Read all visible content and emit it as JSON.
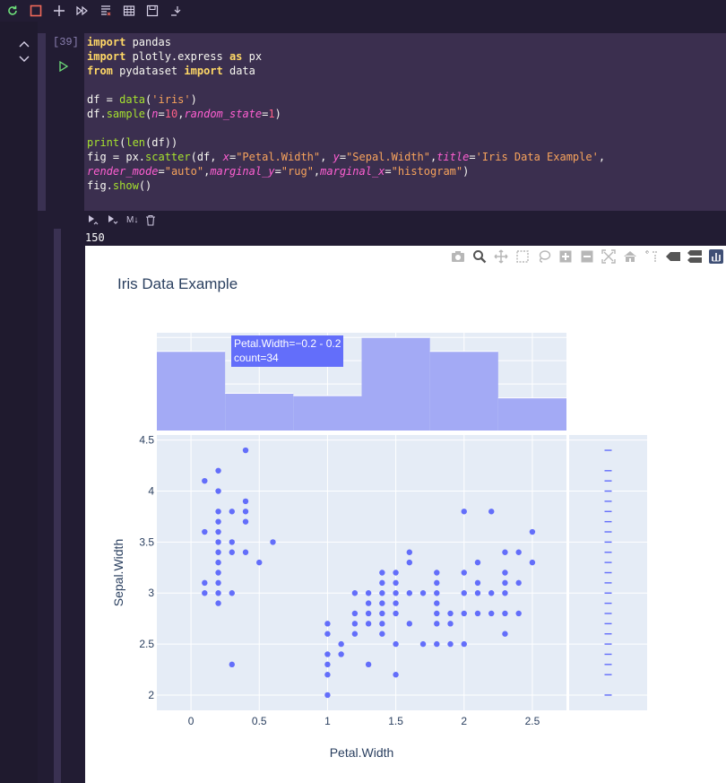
{
  "toolbar": {
    "buttons": [
      "restart-icon",
      "stop-icon",
      "add-cell-icon",
      "run-all-icon",
      "clear-outputs-icon",
      "variables-icon",
      "save-icon",
      "export-icon"
    ]
  },
  "cell": {
    "execution_count": "[39]",
    "lines": [
      [
        {
          "t": "import",
          "c": "kw"
        },
        {
          "t": " pandas",
          "c": ""
        }
      ],
      [
        {
          "t": "import",
          "c": "kw"
        },
        {
          "t": " plotly.express ",
          "c": ""
        },
        {
          "t": "as",
          "c": "kw"
        },
        {
          "t": " px",
          "c": ""
        }
      ],
      [
        {
          "t": "from",
          "c": "kw"
        },
        {
          "t": " pydataset ",
          "c": ""
        },
        {
          "t": "import",
          "c": "kw"
        },
        {
          "t": " data",
          "c": ""
        }
      ],
      [
        {
          "t": "",
          "c": ""
        }
      ],
      [
        {
          "t": "df = ",
          "c": ""
        },
        {
          "t": "data",
          "c": "fn"
        },
        {
          "t": "(",
          "c": ""
        },
        {
          "t": "'iris'",
          "c": "str"
        },
        {
          "t": ")",
          "c": ""
        }
      ],
      [
        {
          "t": "df.",
          "c": ""
        },
        {
          "t": "sample",
          "c": "fn"
        },
        {
          "t": "(",
          "c": ""
        },
        {
          "t": "n",
          "c": "par"
        },
        {
          "t": "=",
          "c": ""
        },
        {
          "t": "10",
          "c": "num"
        },
        {
          "t": ",",
          "c": ""
        },
        {
          "t": "random_state",
          "c": "par"
        },
        {
          "t": "=",
          "c": ""
        },
        {
          "t": "1",
          "c": "num"
        },
        {
          "t": ")",
          "c": ""
        }
      ],
      [
        {
          "t": "",
          "c": ""
        }
      ],
      [
        {
          "t": "print",
          "c": "fn"
        },
        {
          "t": "(",
          "c": ""
        },
        {
          "t": "len",
          "c": "fn"
        },
        {
          "t": "(df))",
          "c": ""
        }
      ],
      [
        {
          "t": "fig = px.",
          "c": ""
        },
        {
          "t": "scatter",
          "c": "fn"
        },
        {
          "t": "(df, ",
          "c": ""
        },
        {
          "t": "x",
          "c": "par"
        },
        {
          "t": "=",
          "c": ""
        },
        {
          "t": "\"Petal.Width\"",
          "c": "str"
        },
        {
          "t": ", ",
          "c": ""
        },
        {
          "t": "y",
          "c": "par"
        },
        {
          "t": "=",
          "c": ""
        },
        {
          "t": "\"Sepal.Width\"",
          "c": "str"
        },
        {
          "t": ",",
          "c": ""
        },
        {
          "t": "title",
          "c": "par"
        },
        {
          "t": "=",
          "c": ""
        },
        {
          "t": "'Iris Data Example'",
          "c": "str"
        },
        {
          "t": ",",
          "c": ""
        }
      ],
      [
        {
          "t": "render_mode",
          "c": "par"
        },
        {
          "t": "=",
          "c": ""
        },
        {
          "t": "\"auto\"",
          "c": "str"
        },
        {
          "t": ",",
          "c": ""
        },
        {
          "t": "marginal_y",
          "c": "par"
        },
        {
          "t": "=",
          "c": ""
        },
        {
          "t": "\"rug\"",
          "c": "str"
        },
        {
          "t": ",",
          "c": ""
        },
        {
          "t": "marginal_x",
          "c": "par"
        },
        {
          "t": "=",
          "c": ""
        },
        {
          "t": "\"histogram\"",
          "c": "str"
        },
        {
          "t": ")",
          "c": ""
        }
      ],
      [
        {
          "t": "fig.",
          "c": ""
        },
        {
          "t": "show",
          "c": "fn"
        },
        {
          "t": "()",
          "c": ""
        }
      ]
    ]
  },
  "cell_actions": {
    "markdown_label": "M↓"
  },
  "output": {
    "stdout": "150"
  },
  "colors": {
    "marker": "#636efa",
    "plot_bg": "#e5ecf6",
    "hist": "#a3aaf5"
  },
  "chart_data": {
    "type": "scatter",
    "title": "Iris Data Example",
    "xlabel": "Petal.Width",
    "ylabel": "Sepal.Width",
    "xlim": [
      -0.25,
      2.75
    ],
    "ylim": [
      1.85,
      4.55
    ],
    "x_ticks": [
      0,
      0.5,
      1,
      1.5,
      2,
      2.5
    ],
    "x_tick_labels": [
      "0",
      "0.5",
      "1",
      "1.5",
      "2",
      "2.5"
    ],
    "y_ticks": [
      2,
      2.5,
      3,
      3.5,
      4,
      4.5
    ],
    "y_tick_labels": [
      "2",
      "2.5",
      "3",
      "3.5",
      "4",
      "4.5"
    ],
    "grid": true,
    "points": [
      [
        0.1,
        4.1
      ],
      [
        0.1,
        3.6
      ],
      [
        0.1,
        3.1
      ],
      [
        0.1,
        3.0
      ],
      [
        0.2,
        4.2
      ],
      [
        0.2,
        4.0
      ],
      [
        0.2,
        3.8
      ],
      [
        0.2,
        3.7
      ],
      [
        0.2,
        3.6
      ],
      [
        0.2,
        3.5
      ],
      [
        0.2,
        3.4
      ],
      [
        0.2,
        3.3
      ],
      [
        0.2,
        3.2
      ],
      [
        0.2,
        3.1
      ],
      [
        0.2,
        3.0
      ],
      [
        0.2,
        2.9
      ],
      [
        0.3,
        3.8
      ],
      [
        0.3,
        3.5
      ],
      [
        0.3,
        3.4
      ],
      [
        0.3,
        3.0
      ],
      [
        0.3,
        2.3
      ],
      [
        0.4,
        4.4
      ],
      [
        0.4,
        3.9
      ],
      [
        0.4,
        3.8
      ],
      [
        0.4,
        3.7
      ],
      [
        0.4,
        3.4
      ],
      [
        0.5,
        3.3
      ],
      [
        0.6,
        3.5
      ],
      [
        1.0,
        2.7
      ],
      [
        1.0,
        2.6
      ],
      [
        1.0,
        2.4
      ],
      [
        1.0,
        2.3
      ],
      [
        1.0,
        2.2
      ],
      [
        1.0,
        2.0
      ],
      [
        1.1,
        2.5
      ],
      [
        1.1,
        2.4
      ],
      [
        1.2,
        3.0
      ],
      [
        1.2,
        2.8
      ],
      [
        1.2,
        2.7
      ],
      [
        1.2,
        2.6
      ],
      [
        1.3,
        3.0
      ],
      [
        1.3,
        2.9
      ],
      [
        1.3,
        2.8
      ],
      [
        1.3,
        2.7
      ],
      [
        1.3,
        2.3
      ],
      [
        1.4,
        3.2
      ],
      [
        1.4,
        3.1
      ],
      [
        1.4,
        3.0
      ],
      [
        1.4,
        2.9
      ],
      [
        1.4,
        2.8
      ],
      [
        1.4,
        2.7
      ],
      [
        1.4,
        2.6
      ],
      [
        1.5,
        3.2
      ],
      [
        1.5,
        3.1
      ],
      [
        1.5,
        3.0
      ],
      [
        1.5,
        2.9
      ],
      [
        1.5,
        2.8
      ],
      [
        1.5,
        2.5
      ],
      [
        1.5,
        2.2
      ],
      [
        1.6,
        3.4
      ],
      [
        1.6,
        3.3
      ],
      [
        1.6,
        3.0
      ],
      [
        1.6,
        2.7
      ],
      [
        1.7,
        3.0
      ],
      [
        1.7,
        2.5
      ],
      [
        1.8,
        3.2
      ],
      [
        1.8,
        3.1
      ],
      [
        1.8,
        3.0
      ],
      [
        1.8,
        2.9
      ],
      [
        1.8,
        2.8
      ],
      [
        1.8,
        2.7
      ],
      [
        1.8,
        2.5
      ],
      [
        1.9,
        2.8
      ],
      [
        1.9,
        2.7
      ],
      [
        1.9,
        2.5
      ],
      [
        2.0,
        3.8
      ],
      [
        2.0,
        3.2
      ],
      [
        2.0,
        3.0
      ],
      [
        2.0,
        2.8
      ],
      [
        2.0,
        2.5
      ],
      [
        2.1,
        3.3
      ],
      [
        2.1,
        3.1
      ],
      [
        2.1,
        3.0
      ],
      [
        2.1,
        2.8
      ],
      [
        2.2,
        3.8
      ],
      [
        2.2,
        3.0
      ],
      [
        2.2,
        2.8
      ],
      [
        2.3,
        3.4
      ],
      [
        2.3,
        3.2
      ],
      [
        2.3,
        3.1
      ],
      [
        2.3,
        3.0
      ],
      [
        2.3,
        2.8
      ],
      [
        2.3,
        2.6
      ],
      [
        2.4,
        3.4
      ],
      [
        2.4,
        3.1
      ],
      [
        2.4,
        2.8
      ],
      [
        2.5,
        3.6
      ],
      [
        2.5,
        3.3
      ]
    ],
    "histogram": {
      "bins": [
        {
          "start": -0.25,
          "end": 0.25,
          "count": 34
        },
        {
          "start": 0.25,
          "end": 0.75,
          "count": 16
        },
        {
          "start": 0.75,
          "end": 1.25,
          "count": 15
        },
        {
          "start": 1.25,
          "end": 1.75,
          "count": 40
        },
        {
          "start": 1.75,
          "end": 2.25,
          "count": 34
        },
        {
          "start": 2.25,
          "end": 2.75,
          "count": 14
        }
      ],
      "y_range": [
        0,
        42
      ]
    },
    "rug_y": [
      4.4,
      4.2,
      4.1,
      4.0,
      3.9,
      3.8,
      3.7,
      3.6,
      3.5,
      3.4,
      3.3,
      3.2,
      3.1,
      3.0,
      2.9,
      2.8,
      2.7,
      2.6,
      2.5,
      2.4,
      2.3,
      2.2,
      2.0
    ]
  },
  "hover": {
    "line1": "Petal.Width=−0.2 - 0.2",
    "line2": "count=34"
  },
  "modebar": [
    "camera-icon",
    "zoom-icon",
    "pan-icon",
    "box-select-icon",
    "lasso-select-icon",
    "zoom-in-icon",
    "zoom-out-icon",
    "autoscale-icon",
    "reset-axes-icon",
    "spike-lines-icon",
    "hover-closest-icon",
    "hover-compare-icon",
    "plotly-logo-icon"
  ]
}
